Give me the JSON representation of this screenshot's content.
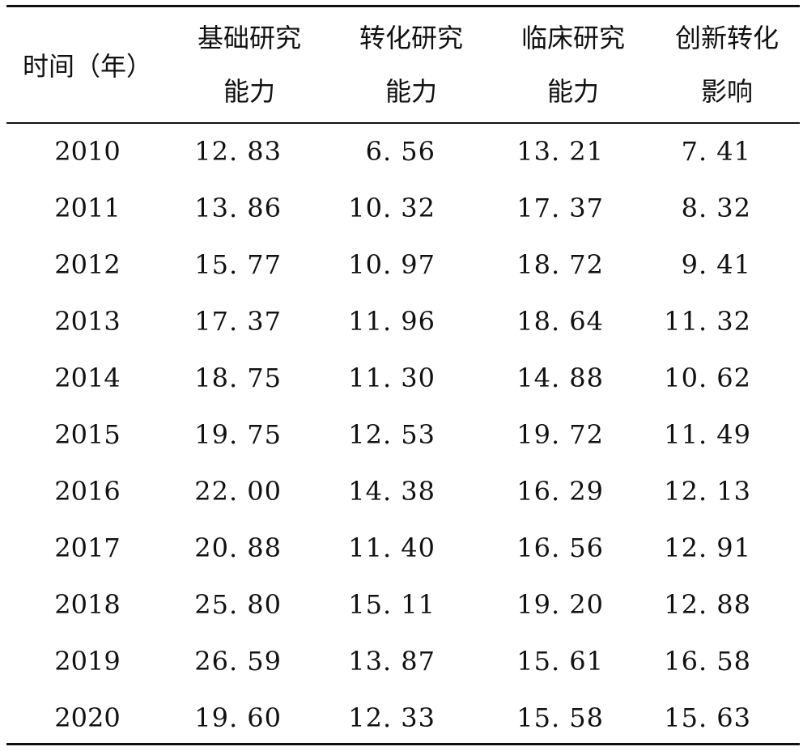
{
  "table": {
    "headers": [
      {
        "lines": [
          "时间（年）"
        ]
      },
      {
        "lines": [
          "基础研究",
          "能力"
        ]
      },
      {
        "lines": [
          "转化研究",
          "能力"
        ]
      },
      {
        "lines": [
          "临床研究",
          "能力"
        ]
      },
      {
        "lines": [
          "创新转化",
          "影响"
        ]
      }
    ],
    "rows": [
      [
        "2010",
        "12. 83",
        "6. 56",
        "13. 21",
        "7. 41"
      ],
      [
        "2011",
        "13. 86",
        "10. 32",
        "17. 37",
        "8. 32"
      ],
      [
        "2012",
        "15. 77",
        "10. 97",
        "18. 72",
        "9. 41"
      ],
      [
        "2013",
        "17. 37",
        "11. 96",
        "18. 64",
        "11. 32"
      ],
      [
        "2014",
        "18. 75",
        "11. 30",
        "14. 88",
        "10. 62"
      ],
      [
        "2015",
        "19. 75",
        "12. 53",
        "19. 72",
        "11. 49"
      ],
      [
        "2016",
        "22. 00",
        "14. 38",
        "16. 29",
        "12. 13"
      ],
      [
        "2017",
        "20. 88",
        "11. 40",
        "16. 56",
        "12. 91"
      ],
      [
        "2018",
        "25. 80",
        "15. 11",
        "19. 20",
        "12. 88"
      ],
      [
        "2019",
        "26. 59",
        "13. 87",
        "15. 61",
        "16. 58"
      ],
      [
        "2020",
        "19. 60",
        "12. 33",
        "15. 58",
        "15. 63"
      ]
    ]
  }
}
